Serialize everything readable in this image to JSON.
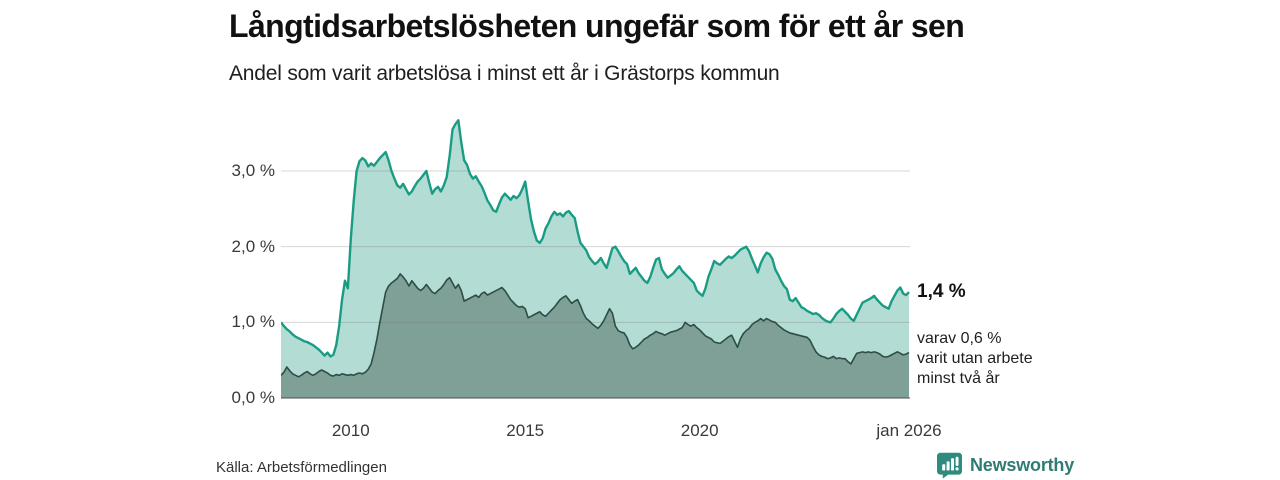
{
  "header": {
    "title": "Långtidsarbetslösheten ungefär som för ett år sen",
    "subtitle": "Andel som varit arbetslösa i minst ett år i Grästorps kommun"
  },
  "chart_data": {
    "type": "area",
    "title": "Långtidsarbetslösheten ungefär som för ett år sen",
    "subtitle": "Andel som varit arbetslösa i minst ett år i Grästorps kommun",
    "x_start": "2008-01",
    "x_end": "2026-01",
    "x_unit": "month",
    "ylim": [
      0,
      3.94
    ],
    "grid": true,
    "legend_position": "end-of-line-labels",
    "x_ticks": [
      {
        "label": "2010",
        "month_index": 24
      },
      {
        "label": "2015",
        "month_index": 84
      },
      {
        "label": "2020",
        "month_index": 144
      },
      {
        "label": "jan 2026",
        "month_index": 216
      }
    ],
    "y_ticks": [
      {
        "label": "0,0 %",
        "value": 0
      },
      {
        "label": "1,0 %",
        "value": 1
      },
      {
        "label": "2,0 %",
        "value": 2
      },
      {
        "label": "3,0 %",
        "value": 3
      }
    ],
    "series": [
      {
        "name": "Andel som varit arbetslösa minst ett år",
        "end_label": "1,4 %",
        "latest_value": 1.4,
        "line_color": "#1a9c84",
        "fill_color": "#b2dcd4",
        "line_width": 2.4,
        "values": [
          1.0,
          0.95,
          0.91,
          0.88,
          0.84,
          0.81,
          0.79,
          0.77,
          0.75,
          0.74,
          0.72,
          0.7,
          0.67,
          0.64,
          0.6,
          0.56,
          0.6,
          0.55,
          0.57,
          0.7,
          0.95,
          1.3,
          1.55,
          1.45,
          2.1,
          2.6,
          3.0,
          3.13,
          3.17,
          3.14,
          3.06,
          3.1,
          3.07,
          3.12,
          3.17,
          3.21,
          3.25,
          3.14,
          3.0,
          2.9,
          2.81,
          2.78,
          2.83,
          2.76,
          2.69,
          2.73,
          2.8,
          2.86,
          2.9,
          2.95,
          3.0,
          2.84,
          2.7,
          2.76,
          2.79,
          2.73,
          2.81,
          2.92,
          3.2,
          3.55,
          3.62,
          3.67,
          3.38,
          3.14,
          3.08,
          2.96,
          2.9,
          2.93,
          2.86,
          2.8,
          2.71,
          2.61,
          2.55,
          2.48,
          2.46,
          2.56,
          2.65,
          2.7,
          2.66,
          2.62,
          2.67,
          2.64,
          2.68,
          2.76,
          2.86,
          2.6,
          2.36,
          2.2,
          2.08,
          2.05,
          2.11,
          2.24,
          2.31,
          2.4,
          2.46,
          2.42,
          2.44,
          2.4,
          2.45,
          2.47,
          2.42,
          2.38,
          2.2,
          2.05,
          2.0,
          1.95,
          1.86,
          1.81,
          1.77,
          1.8,
          1.85,
          1.78,
          1.72,
          1.85,
          1.98,
          2.0,
          1.94,
          1.87,
          1.81,
          1.77,
          1.64,
          1.68,
          1.72,
          1.65,
          1.6,
          1.55,
          1.52,
          1.6,
          1.72,
          1.83,
          1.85,
          1.7,
          1.64,
          1.59,
          1.62,
          1.65,
          1.7,
          1.74,
          1.68,
          1.64,
          1.6,
          1.56,
          1.52,
          1.42,
          1.38,
          1.35,
          1.45,
          1.6,
          1.7,
          1.81,
          1.78,
          1.76,
          1.8,
          1.84,
          1.87,
          1.85,
          1.88,
          1.92,
          1.96,
          1.98,
          2.0,
          1.94,
          1.84,
          1.75,
          1.66,
          1.78,
          1.86,
          1.92,
          1.9,
          1.84,
          1.7,
          1.63,
          1.55,
          1.48,
          1.44,
          1.3,
          1.28,
          1.32,
          1.26,
          1.2,
          1.18,
          1.15,
          1.13,
          1.11,
          1.12,
          1.1,
          1.06,
          1.03,
          1.01,
          1.0,
          1.05,
          1.11,
          1.15,
          1.18,
          1.14,
          1.1,
          1.05,
          1.02,
          1.1,
          1.18,
          1.26,
          1.28,
          1.3,
          1.32,
          1.35,
          1.3,
          1.26,
          1.22,
          1.2,
          1.18,
          1.28,
          1.35,
          1.42,
          1.46,
          1.38,
          1.36,
          1.4
        ]
      },
      {
        "name": "Varav varit utan arbete minst två år",
        "end_label_lines": [
          "varav 0,6 %",
          "varit utan arbete",
          "minst två år"
        ],
        "latest_value": 0.6,
        "line_color": "#2d4d45",
        "fill_color": "#7ea096",
        "line_width": 1.6,
        "values": [
          0.3,
          0.34,
          0.41,
          0.36,
          0.32,
          0.3,
          0.28,
          0.3,
          0.33,
          0.35,
          0.32,
          0.3,
          0.32,
          0.35,
          0.37,
          0.35,
          0.33,
          0.3,
          0.29,
          0.31,
          0.3,
          0.32,
          0.31,
          0.3,
          0.31,
          0.3,
          0.32,
          0.33,
          0.32,
          0.34,
          0.38,
          0.45,
          0.6,
          0.78,
          1.0,
          1.2,
          1.4,
          1.48,
          1.52,
          1.55,
          1.58,
          1.64,
          1.6,
          1.55,
          1.48,
          1.55,
          1.5,
          1.45,
          1.42,
          1.45,
          1.5,
          1.45,
          1.4,
          1.38,
          1.42,
          1.45,
          1.5,
          1.56,
          1.59,
          1.52,
          1.45,
          1.5,
          1.42,
          1.28,
          1.3,
          1.32,
          1.34,
          1.36,
          1.33,
          1.38,
          1.4,
          1.36,
          1.38,
          1.4,
          1.42,
          1.44,
          1.46,
          1.42,
          1.36,
          1.3,
          1.26,
          1.22,
          1.2,
          1.21,
          1.18,
          1.06,
          1.08,
          1.1,
          1.12,
          1.14,
          1.1,
          1.08,
          1.12,
          1.16,
          1.2,
          1.25,
          1.3,
          1.33,
          1.35,
          1.3,
          1.25,
          1.28,
          1.3,
          1.22,
          1.12,
          1.05,
          1.02,
          0.98,
          0.95,
          0.92,
          0.96,
          1.02,
          1.1,
          1.18,
          1.12,
          0.95,
          0.89,
          0.87,
          0.86,
          0.8,
          0.7,
          0.65,
          0.67,
          0.7,
          0.74,
          0.78,
          0.8,
          0.83,
          0.85,
          0.88,
          0.86,
          0.85,
          0.83,
          0.85,
          0.87,
          0.88,
          0.89,
          0.91,
          0.93,
          1.0,
          0.97,
          0.95,
          0.97,
          0.93,
          0.9,
          0.86,
          0.82,
          0.8,
          0.78,
          0.74,
          0.73,
          0.72,
          0.75,
          0.78,
          0.81,
          0.83,
          0.75,
          0.67,
          0.78,
          0.85,
          0.89,
          0.92,
          0.97,
          1.0,
          1.02,
          1.05,
          1.02,
          1.05,
          1.03,
          1.01,
          1.0,
          0.96,
          0.93,
          0.9,
          0.88,
          0.86,
          0.85,
          0.84,
          0.83,
          0.82,
          0.81,
          0.8,
          0.76,
          0.68,
          0.61,
          0.57,
          0.55,
          0.54,
          0.52,
          0.53,
          0.55,
          0.52,
          0.53,
          0.52,
          0.52,
          0.48,
          0.45,
          0.52,
          0.59,
          0.6,
          0.61,
          0.6,
          0.61,
          0.6,
          0.61,
          0.6,
          0.58,
          0.55,
          0.54,
          0.55,
          0.57,
          0.59,
          0.61,
          0.59,
          0.57,
          0.58,
          0.6
        ]
      }
    ],
    "grid_color": "rgba(110,110,110,0.28)",
    "axis_color": "#4d4d4d"
  },
  "annotations": {
    "latest_total": "1,4 %",
    "latest_two_year_lines": [
      "varav 0,6 %",
      "varit utan arbete",
      "minst två år"
    ]
  },
  "source": {
    "text": "Källa: Arbetsförmedlingen"
  },
  "branding": {
    "name": "Newsworthy",
    "icon": "newsworthy-logo-icon",
    "icon_color": "#2f8b7d",
    "text_color": "#2f7d72"
  }
}
